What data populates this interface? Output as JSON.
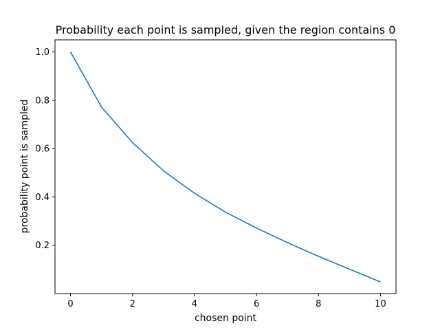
{
  "chart_data": {
    "type": "line",
    "title": "Probability each point is sampled, given the region contains 0",
    "xlabel": "chosen point",
    "ylabel": "probability point is sampled",
    "xlim": [
      -0.5,
      10.5
    ],
    "ylim": [
      0.0,
      1.05
    ],
    "xticks": [
      0,
      2,
      4,
      6,
      8,
      10
    ],
    "yticks": [
      0.2,
      0.4,
      0.6,
      0.8,
      1.0
    ],
    "xtick_labels": [
      "0",
      "2",
      "4",
      "6",
      "8",
      "10"
    ],
    "ytick_labels": [
      "0.2",
      "0.4",
      "0.6",
      "0.8",
      "1.0"
    ],
    "grid": false,
    "legend": "none",
    "series": [
      {
        "color": "#1f77b4",
        "x": [
          0,
          1,
          2,
          3,
          4,
          5,
          6,
          7,
          8,
          9,
          10
        ],
        "y": [
          1.0,
          0.772,
          0.625,
          0.508,
          0.415,
          0.337,
          0.271,
          0.211,
          0.154,
          0.101,
          0.048
        ]
      }
    ]
  }
}
